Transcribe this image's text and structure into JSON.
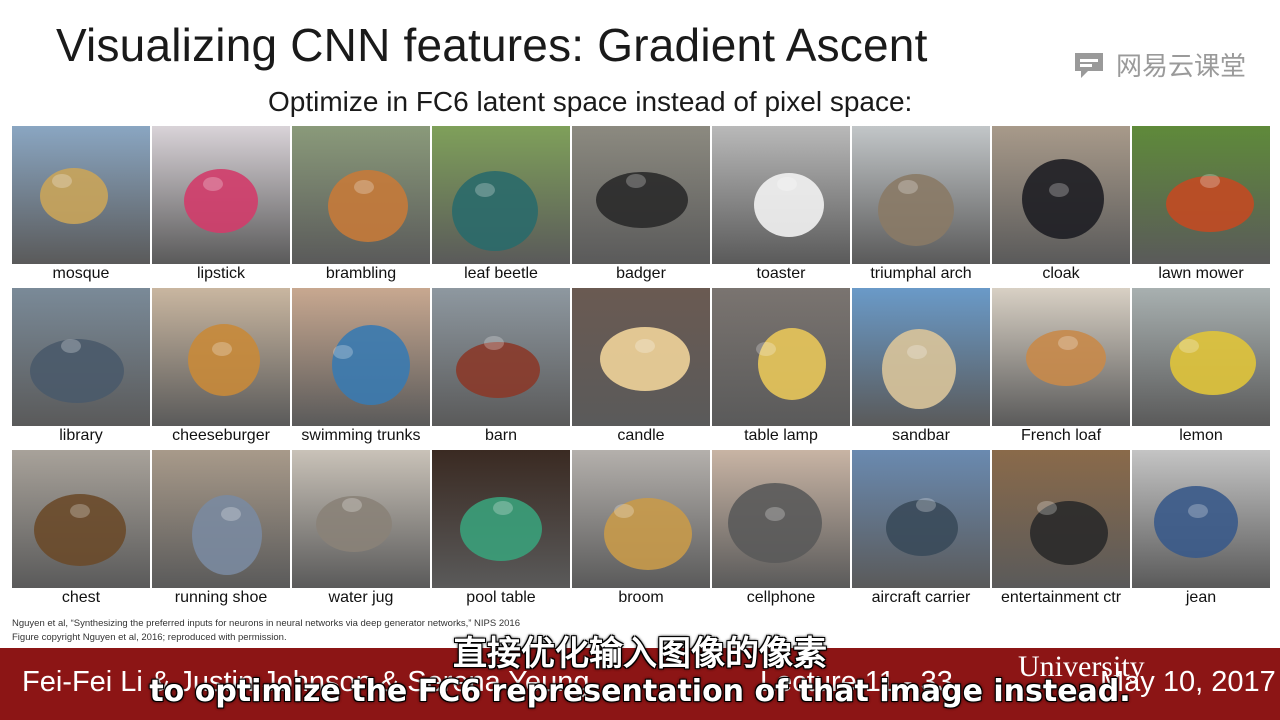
{
  "slide": {
    "title": "Visualizing CNN features: Gradient Ascent",
    "subtitle": "Optimize in FC6 latent space instead of pixel space:"
  },
  "watermark": {
    "text": "网易云课堂",
    "icon": "chat-bubble-icon"
  },
  "images": [
    {
      "label": "mosque",
      "bg": "#8aa6c2",
      "fg": "#c9a45a"
    },
    {
      "label": "lipstick",
      "bg": "#d9d3d8",
      "fg": "#d23c6a"
    },
    {
      "label": "brambling",
      "bg": "#8a9a7a",
      "fg": "#c57a3a"
    },
    {
      "label": "leaf beetle",
      "bg": "#7fa05a",
      "fg": "#2a6a6a"
    },
    {
      "label": "badger",
      "bg": "#8c8a80",
      "fg": "#2a2a2a"
    },
    {
      "label": "toaster",
      "bg": "#b9b9b9",
      "fg": "#f2f2f2"
    },
    {
      "label": "triumphal arch",
      "bg": "#c2c6c8",
      "fg": "#8a7a66"
    },
    {
      "label": "cloak",
      "bg": "#a89a8a",
      "fg": "#1e1e24"
    },
    {
      "label": "lawn mower",
      "bg": "#5f8a3a",
      "fg": "#c24a22"
    },
    {
      "label": "library",
      "bg": "#7a8a98",
      "fg": "#4a5a6a"
    },
    {
      "label": "cheeseburger",
      "bg": "#c9b6a0",
      "fg": "#c88a3a"
    },
    {
      "label": "swimming trunks",
      "bg": "#c8a890",
      "fg": "#3a7ab0"
    },
    {
      "label": "barn",
      "bg": "#8e98a0",
      "fg": "#8a3a2a"
    },
    {
      "label": "candle",
      "bg": "#6a5a52",
      "fg": "#f0d39a"
    },
    {
      "label": "table lamp",
      "bg": "#7a7470",
      "fg": "#e8c65a"
    },
    {
      "label": "sandbar",
      "bg": "#6a9ac8",
      "fg": "#d9c49a"
    },
    {
      "label": "French loaf",
      "bg": "#d8d0c4",
      "fg": "#c88a4a"
    },
    {
      "label": "lemon",
      "bg": "#a8b0b0",
      "fg": "#e0c43a"
    },
    {
      "label": "chest",
      "bg": "#a8a29a",
      "fg": "#6a4a2a"
    },
    {
      "label": "running shoe",
      "bg": "#a89a8a",
      "fg": "#7a8aa0"
    },
    {
      "label": "water jug",
      "bg": "#c9c2b8",
      "fg": "#8a8278"
    },
    {
      "label": "pool table",
      "bg": "#3a2a22",
      "fg": "#3aa07a"
    },
    {
      "label": "broom",
      "bg": "#b4b0ac",
      "fg": "#c89a4a"
    },
    {
      "label": "cellphone",
      "bg": "#c8b4a4",
      "fg": "#5a5a5a"
    },
    {
      "label": "aircraft carrier",
      "bg": "#6a8ab0",
      "fg": "#3a4a5a"
    },
    {
      "label": "entertainment ctr",
      "bg": "#8a6a4a",
      "fg": "#2a2a2a"
    },
    {
      "label": "jean",
      "bg": "#c4c4c4",
      "fg": "#3a5a8a"
    }
  ],
  "citation": {
    "line1": "Nguyen et al, “Synthesizing the preferred inputs for neurons in neural networks via deep generator networks,” NIPS 2016",
    "line2": "Figure copyright Nguyen et al, 2016; reproduced with permission."
  },
  "footer": {
    "authors": "Fei-Fei Li & Justin Johnson & Serena Yeung",
    "lecture": "Lecture 11 -   33",
    "date": "May 10, 2017",
    "university": "University",
    "bar_color": "#8c1515"
  },
  "subtitles": {
    "chinese": "直接优化输入图像的像素",
    "english": "to optimize the FC6 representation of that image instead."
  }
}
